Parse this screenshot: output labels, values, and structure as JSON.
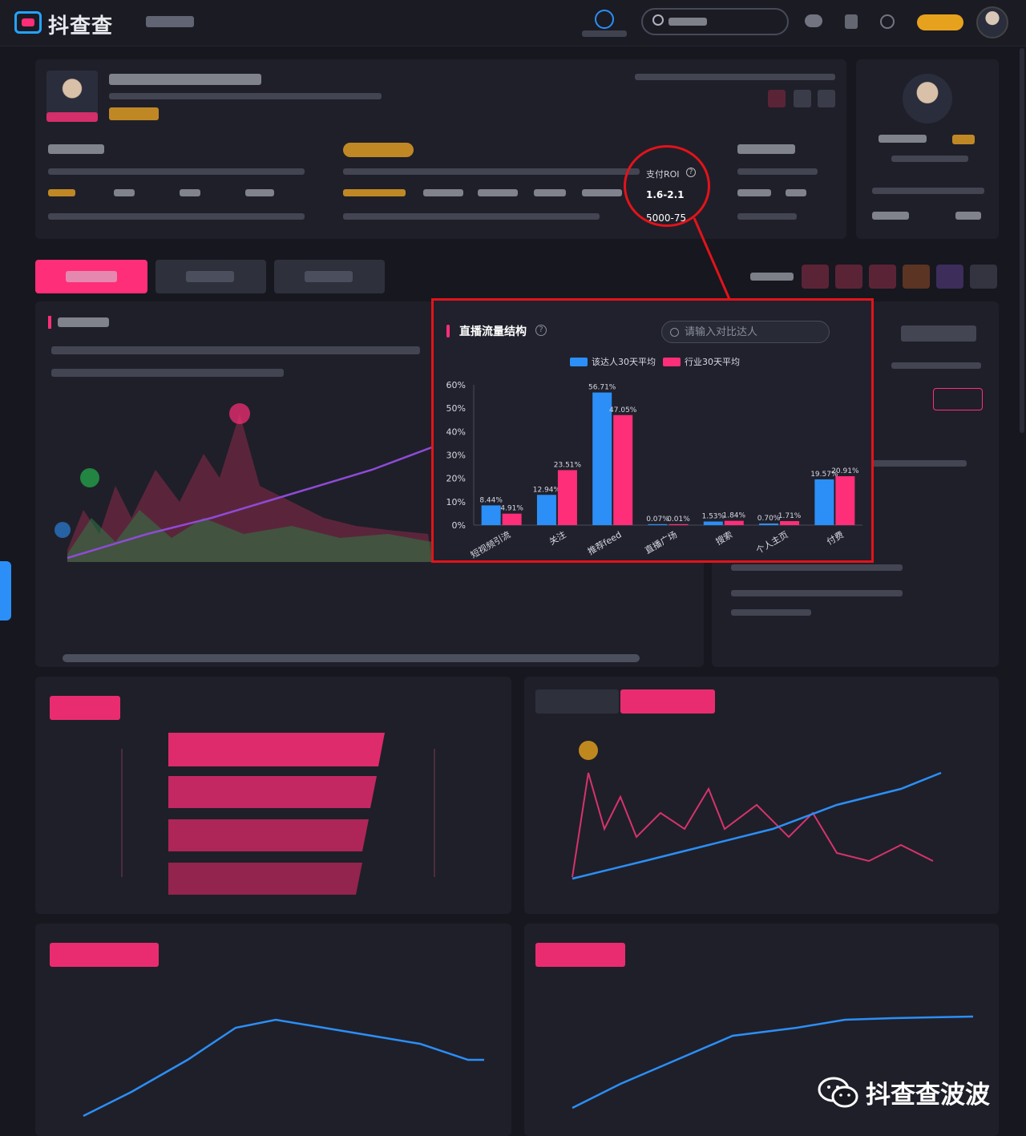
{
  "app": {
    "logo_text": "抖查查"
  },
  "header": {
    "search_placeholder": "搜索",
    "icons": [
      "search-icon",
      "message-icon",
      "bag-icon",
      "headset-icon"
    ]
  },
  "roi_callout": {
    "label": "支付ROI",
    "value": "1.6-2.1",
    "next_value": "5000-75"
  },
  "popup": {
    "title": "直播流量结构",
    "search_placeholder": "请输入对比达人",
    "legend": [
      {
        "name": "该达人30天平均",
        "color": "#2b8ff7"
      },
      {
        "name": "行业30天平均",
        "color": "#ff2e78"
      }
    ]
  },
  "chart_data": {
    "type": "bar",
    "title": "直播流量结构",
    "categories": [
      "短视频引流",
      "关注",
      "推荐feed",
      "直播广场",
      "搜索",
      "个人主页",
      "付费"
    ],
    "series": [
      {
        "name": "该达人30天平均",
        "values": [
          8.44,
          12.94,
          56.71,
          0.07,
          1.53,
          0.7,
          19.57
        ],
        "labels": [
          "8.44%",
          "12.94%",
          "56.71%",
          "0.07%",
          "1.53%",
          "0.70%",
          "19.57%"
        ]
      },
      {
        "name": "行业30天平均",
        "values": [
          4.91,
          23.51,
          47.05,
          0.01,
          1.84,
          1.71,
          20.91
        ],
        "labels": [
          "4.91%",
          "23.51%",
          "47.05%",
          "0.01%",
          "1.84%",
          "1.71%",
          "20.91%"
        ]
      }
    ],
    "y_ticks": [
      "0%",
      "10%",
      "20%",
      "30%",
      "40%",
      "50%",
      "60%"
    ],
    "ylim": [
      0,
      60
    ],
    "grid": false,
    "legend_position": "top"
  },
  "footer": {
    "watermark": "抖查查波波"
  },
  "colors": {
    "accent": "#ff2e78",
    "blue": "#2b8ff7",
    "callout": "#e3131a",
    "bg": "#17171f",
    "card": "#1f1f29"
  }
}
